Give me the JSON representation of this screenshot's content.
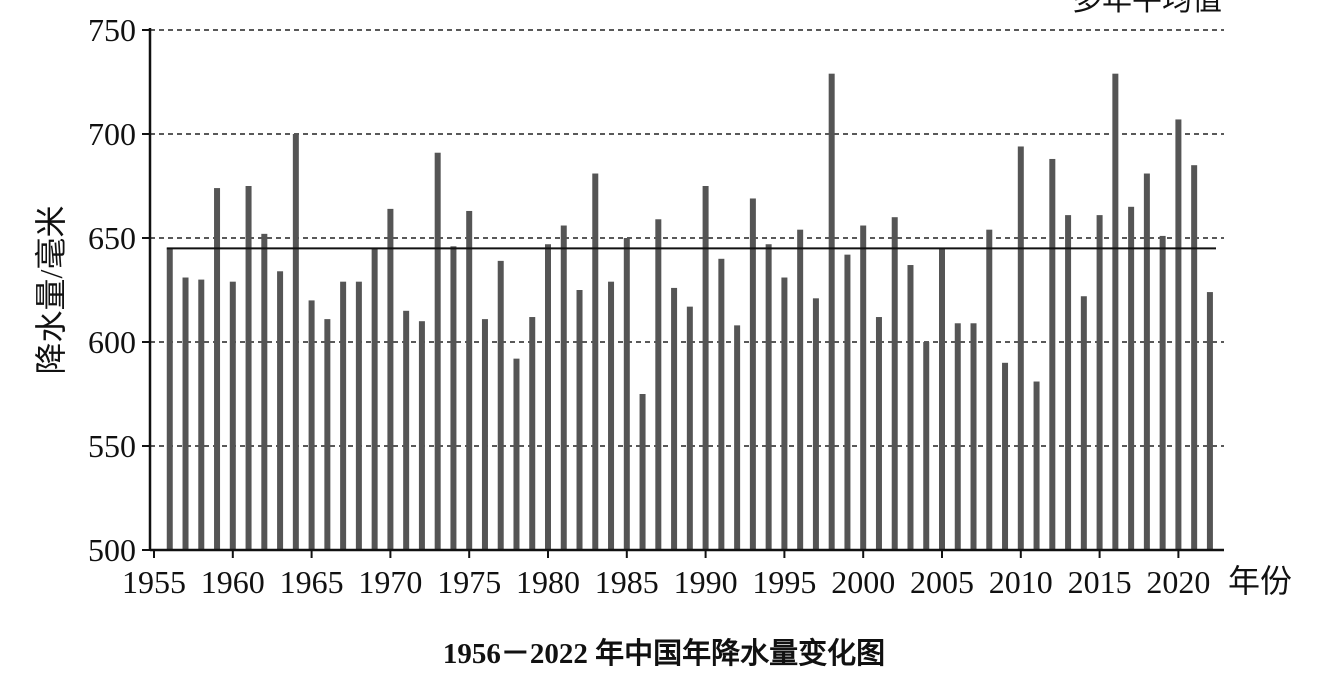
{
  "chart_data": {
    "type": "bar",
    "title": "1956－2022 年中国年降水量变化图",
    "xlabel": "年份",
    "ylabel": "降水量/毫米",
    "ylim": [
      500,
      750
    ],
    "yticks": [
      500,
      550,
      600,
      650,
      700,
      750
    ],
    "xlim": [
      1955,
      2022
    ],
    "xticks": [
      1955,
      1960,
      1965,
      1970,
      1975,
      1980,
      1985,
      1990,
      1995,
      2000,
      2005,
      2010,
      2015,
      2020
    ],
    "grid": "horizontal-dashed",
    "reference_line": {
      "label": "多年平均值",
      "value": 645
    },
    "bar_color": "#555555",
    "categories": [
      1956,
      1957,
      1958,
      1959,
      1960,
      1961,
      1962,
      1963,
      1964,
      1965,
      1966,
      1967,
      1968,
      1969,
      1970,
      1971,
      1972,
      1973,
      1974,
      1975,
      1976,
      1977,
      1978,
      1979,
      1980,
      1981,
      1982,
      1983,
      1984,
      1985,
      1986,
      1987,
      1988,
      1989,
      1990,
      1991,
      1992,
      1993,
      1994,
      1995,
      1996,
      1997,
      1998,
      1999,
      2000,
      2001,
      2002,
      2003,
      2004,
      2005,
      2006,
      2007,
      2008,
      2009,
      2010,
      2011,
      2012,
      2013,
      2014,
      2015,
      2016,
      2017,
      2018,
      2019,
      2020,
      2021,
      2022
    ],
    "values": [
      645,
      631,
      630,
      674,
      629,
      675,
      652,
      634,
      700,
      620,
      611,
      629,
      629,
      645,
      664,
      615,
      610,
      691,
      646,
      663,
      611,
      639,
      592,
      612,
      647,
      656,
      625,
      681,
      629,
      650,
      575,
      659,
      626,
      617,
      675,
      640,
      608,
      669,
      647,
      631,
      654,
      621,
      729,
      642,
      656,
      612,
      660,
      637,
      600,
      645,
      609,
      609,
      654,
      590,
      694,
      581,
      688,
      661,
      622,
      661,
      729,
      665,
      681,
      651,
      707,
      685,
      624
    ]
  }
}
